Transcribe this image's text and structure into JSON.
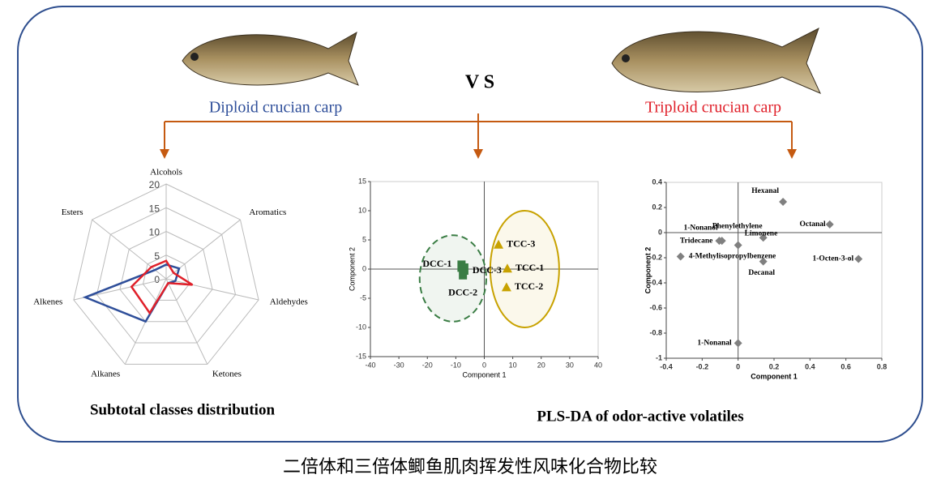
{
  "header": {
    "left_label": "Diploid crucian carp",
    "vs": "V S",
    "right_label": "Triploid crucian carp"
  },
  "caption": "二倍体和三倍体鲫鱼肌肉挥发性风味化合物比较",
  "chart_data": [
    {
      "type": "radar",
      "title": "Subtotal classes distribution",
      "categories": [
        "Alcohols",
        "Aromatics",
        "Aldehydes",
        "Ketones",
        "Alkanes",
        "Alkenes",
        "Esters"
      ],
      "rlim": [
        0,
        20
      ],
      "rticks": [
        0,
        5,
        10,
        15,
        20
      ],
      "series": [
        {
          "color": "#2f4f9a",
          "values": [
            3,
            3.5,
            2,
            1,
            10,
            17.5,
            3
          ]
        },
        {
          "color": "#e0202a",
          "values": [
            3.8,
            2,
            5.7,
            1,
            8,
            7.5,
            4
          ]
        }
      ]
    },
    {
      "type": "scatter",
      "title": "PLS-DA of odor-active volatiles",
      "xlabel": "Component 1",
      "ylabel": "Component 2",
      "xlim": [
        -40,
        40
      ],
      "xticks": [
        -40,
        -30,
        -20,
        -10,
        0,
        10,
        20,
        30,
        40
      ],
      "ylim": [
        -15,
        15
      ],
      "yticks": [
        -15,
        -10,
        -5,
        0,
        5,
        10,
        15
      ],
      "ellipses": [
        {
          "cx": -11,
          "cy": -1.6,
          "rx": 11.7,
          "ry": 7.4,
          "color": "#3a7d44",
          "dashed": true
        },
        {
          "cx": 14.2,
          "cy": 0,
          "rx": 12.1,
          "ry": 10,
          "color": "#c8a200",
          "dashed": false
        }
      ],
      "series": [
        {
          "color": "#3a7d44",
          "marker": "square",
          "labels": [
            "DCC-1",
            "DCC-3",
            "DCC-2"
          ],
          "x": [
            -8,
            -7,
            -7.5
          ],
          "y": [
            0.5,
            0,
            -0.8
          ]
        },
        {
          "color": "#c8a200",
          "marker": "triangle",
          "labels": [
            "TCC-3",
            "TCC-1",
            "TCC-2"
          ],
          "x": [
            5,
            8.1,
            7.8
          ],
          "y": [
            4.2,
            0.1,
            -3.1
          ]
        }
      ]
    },
    {
      "type": "scatter",
      "xlabel": "Component 1",
      "ylabel": "Component 2",
      "xlim": [
        -0.4,
        0.8
      ],
      "xticks": [
        -0.4,
        -0.2,
        0,
        0.2,
        0.4,
        0.6,
        0.8
      ],
      "ylim": [
        -1,
        0.4
      ],
      "yticks": [
        -1,
        -0.8,
        -0.6,
        -0.4,
        -0.2,
        0,
        0.2,
        0.4
      ],
      "series": [
        {
          "color": "#808080",
          "marker": "diamond",
          "labels": [
            "Hexanal",
            "Octanal",
            "Phenylethylene",
            "1-Nonanol",
            "Tridecane",
            "Limonene",
            "4-Methylisopropylbenzene",
            "Decanal",
            "1-Octen-3-ol",
            "1-Nonanal"
          ],
          "x": [
            0.25,
            0.51,
            0.14,
            -0.09,
            -0.105,
            0,
            -0.32,
            0.14,
            0.67,
            0
          ],
          "y": [
            0.245,
            0.065,
            -0.04,
            -0.065,
            -0.065,
            -0.1,
            -0.19,
            -0.23,
            -0.21,
            -0.88
          ]
        }
      ]
    }
  ]
}
